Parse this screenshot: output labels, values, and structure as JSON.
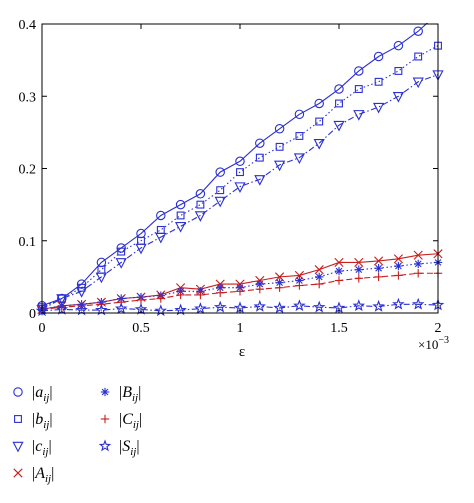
{
  "chart_data": {
    "type": "line",
    "xlabel": "ε",
    "x_multiplier_label": "×10",
    "x_multiplier_exponent": "−3",
    "xlim": [
      0,
      2
    ],
    "ylim": [
      0,
      0.4
    ],
    "x_ticks": [
      {
        "value": 0,
        "label": "0"
      },
      {
        "value": 0.5,
        "label": "0.5"
      },
      {
        "value": 1,
        "label": "1"
      },
      {
        "value": 1.5,
        "label": "1.5"
      },
      {
        "value": 2,
        "label": "2"
      }
    ],
    "y_ticks": [
      {
        "value": 0,
        "label": "0"
      },
      {
        "value": 0.1,
        "label": "0.1"
      },
      {
        "value": 0.2,
        "label": "0.2"
      },
      {
        "value": 0.3,
        "label": "0.3"
      },
      {
        "value": 0.4,
        "label": "0.4"
      }
    ],
    "grid": false,
    "legend_position": "below",
    "x": [
      0,
      0.1,
      0.2,
      0.3,
      0.4,
      0.5,
      0.6,
      0.7,
      0.8,
      0.9,
      1.0,
      1.1,
      1.2,
      1.3,
      1.4,
      1.5,
      1.6,
      1.7,
      1.8,
      1.9,
      2.0
    ],
    "series": [
      {
        "name": "|a_ij|",
        "base": "a",
        "sub": "ij",
        "marker": "circle",
        "color": "#2a2fd4",
        "dash": "solid",
        "values": [
          0.01,
          0.02,
          0.04,
          0.07,
          0.09,
          0.11,
          0.135,
          0.15,
          0.165,
          0.195,
          0.21,
          0.235,
          0.255,
          0.275,
          0.29,
          0.31,
          0.335,
          0.355,
          0.37,
          0.39,
          0.415
        ]
      },
      {
        "name": "|b_ij|",
        "base": "b",
        "sub": "ij",
        "marker": "square",
        "color": "#2a2fd4",
        "dash": "dot",
        "values": [
          0.008,
          0.02,
          0.035,
          0.06,
          0.085,
          0.1,
          0.115,
          0.135,
          0.15,
          0.17,
          0.195,
          0.215,
          0.23,
          0.245,
          0.265,
          0.29,
          0.31,
          0.32,
          0.335,
          0.355,
          0.37
        ]
      },
      {
        "name": "|c_ij|",
        "base": "c",
        "sub": "ij",
        "marker": "triangle-down",
        "color": "#2a2fd4",
        "dash": "dashdot",
        "values": [
          0.005,
          0.02,
          0.03,
          0.05,
          0.07,
          0.09,
          0.105,
          0.12,
          0.135,
          0.155,
          0.175,
          0.185,
          0.205,
          0.215,
          0.235,
          0.26,
          0.275,
          0.285,
          0.3,
          0.32,
          0.33
        ]
      },
      {
        "name": "|A_ij|",
        "base": "A",
        "sub": "ij",
        "marker": "x",
        "color": "#c81e1e",
        "dash": "solid",
        "values": [
          0.005,
          0.01,
          0.012,
          0.015,
          0.02,
          0.022,
          0.025,
          0.035,
          0.033,
          0.04,
          0.04,
          0.045,
          0.05,
          0.052,
          0.06,
          0.07,
          0.07,
          0.072,
          0.075,
          0.08,
          0.082
        ]
      },
      {
        "name": "|B_ij|",
        "base": "B",
        "sub": "ij",
        "marker": "asterisk",
        "color": "#2a2fd4",
        "dash": "dot",
        "values": [
          0.005,
          0.01,
          0.012,
          0.015,
          0.02,
          0.022,
          0.024,
          0.03,
          0.03,
          0.035,
          0.035,
          0.04,
          0.042,
          0.045,
          0.05,
          0.058,
          0.06,
          0.062,
          0.065,
          0.068,
          0.07
        ]
      },
      {
        "name": "|C_ij|",
        "base": "C",
        "sub": "ij",
        "marker": "plus",
        "color": "#c81e1e",
        "dash": "dash",
        "values": [
          0.005,
          0.008,
          0.01,
          0.012,
          0.015,
          0.018,
          0.02,
          0.025,
          0.025,
          0.028,
          0.03,
          0.033,
          0.035,
          0.038,
          0.04,
          0.045,
          0.048,
          0.05,
          0.052,
          0.055,
          0.055
        ]
      },
      {
        "name": "|S_ij|",
        "base": "S",
        "sub": "ij",
        "marker": "star",
        "color": "#2a2fd4",
        "dash": "dashdot",
        "values": [
          0.003,
          0.005,
          0.004,
          0.004,
          0.006,
          0.005,
          0.003,
          0.004,
          0.006,
          0.008,
          0.007,
          0.009,
          0.007,
          0.01,
          0.008,
          0.007,
          0.01,
          0.009,
          0.012,
          0.012,
          0.011
        ]
      }
    ]
  }
}
